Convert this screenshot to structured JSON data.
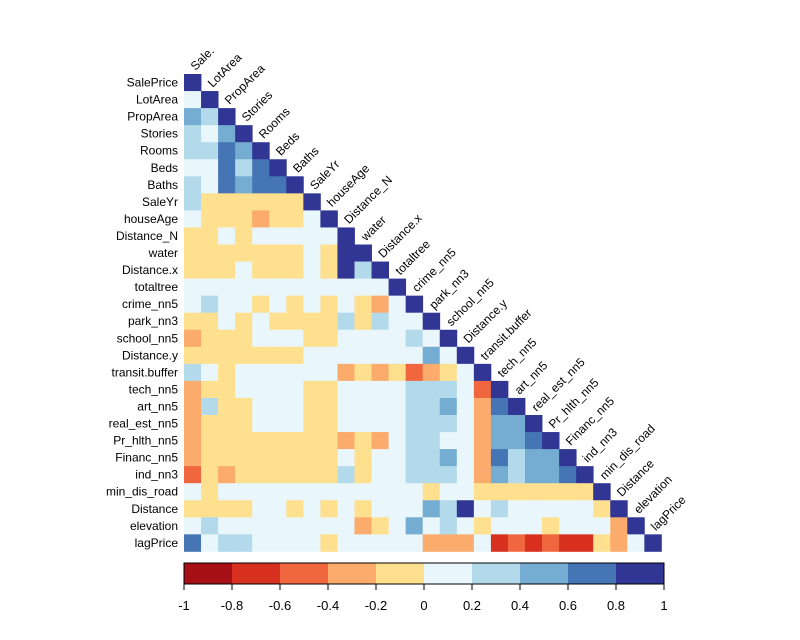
{
  "chart_data": {
    "type": "heatmap",
    "title": "",
    "variables": [
      "SalePrice",
      "LotArea",
      "PropArea",
      "Stories",
      "Rooms",
      "Beds",
      "Baths",
      "SaleYr",
      "houseAge",
      "Distance_N",
      "water",
      "Distance.x",
      "totaltree",
      "crime_nn5",
      "park_nn3",
      "school_nn5",
      "Distance.y",
      "transit.buffer",
      "tech_nn5",
      "art_nn5",
      "real_est_nn5",
      "Pr_hlth_nn5",
      "Financ_nn5",
      "ind_nn3",
      "min_dis_road",
      "Distance",
      "elevation",
      "lagPrice"
    ],
    "column_labels": [
      "Sale.",
      "LotArea",
      "PropArea",
      "Stories",
      "Rooms",
      "Beds",
      "Baths",
      "SaleYr",
      "houseAge",
      "Distance_N",
      "water",
      "Distance.x",
      "totaltree",
      "crime_nn5",
      "park_nn3",
      "school_nn5",
      "Distance.y",
      "transit.buffer",
      "tech_nn5",
      "art_nn5",
      "real_est_nn5",
      "Pr_hlth_nn5",
      "Financ_nn5",
      "ind_nn3",
      "min_dis_road",
      "Distance",
      "elevation",
      "lagPrice"
    ],
    "matrix_type": "lower-triangular correlation",
    "colorbar": {
      "range": [
        -1,
        1
      ],
      "ticks": [
        "-1",
        "-0.8",
        "-0.6",
        "-0.4",
        "-0.2",
        "0",
        "0.2",
        "0.4",
        "0.6",
        "0.8",
        "1"
      ],
      "colors": [
        "#a50f15",
        "#d7301f",
        "#f0663f",
        "#fbab6b",
        "#fee08f",
        "#e9f6fb",
        "#b3daea",
        "#74add1",
        "#4575b4",
        "#313695"
      ]
    },
    "correlations": [
      [
        1.0
      ],
      [
        0.1,
        1.0
      ],
      [
        0.5,
        0.3,
        1.0
      ],
      [
        0.3,
        0.1,
        0.5,
        1.0
      ],
      [
        0.3,
        0.3,
        0.6,
        0.4,
        1.0
      ],
      [
        0.1,
        0.1,
        0.6,
        0.3,
        0.7,
        1.0
      ],
      [
        0.3,
        0.1,
        0.7,
        0.5,
        0.7,
        0.7,
        1.0
      ],
      [
        0.3,
        -0.1,
        -0.1,
        -0.1,
        -0.1,
        -0.1,
        -0.1,
        1.0
      ],
      [
        0.1,
        -0.1,
        -0.1,
        -0.1,
        -0.3,
        -0.1,
        -0.1,
        0.1,
        1.0
      ],
      [
        -0.1,
        -0.1,
        0.1,
        -0.1,
        0.1,
        0.1,
        0.1,
        0.1,
        0.1,
        1.0
      ],
      [
        -0.1,
        -0.1,
        -0.1,
        -0.1,
        -0.1,
        -0.1,
        -0.1,
        0.1,
        -0.1,
        0.9,
        1.0
      ],
      [
        -0.1,
        -0.1,
        -0.1,
        0.1,
        -0.1,
        -0.1,
        -0.1,
        0.1,
        -0.1,
        0.9,
        0.3,
        1.0
      ],
      [
        0.1,
        0.1,
        0.1,
        0.1,
        0.1,
        0.1,
        0.1,
        0.1,
        0.1,
        0.1,
        0.1,
        0.1,
        1.0
      ],
      [
        0.1,
        0.3,
        0.1,
        0.1,
        -0.1,
        0.1,
        -0.1,
        0.1,
        -0.1,
        0.1,
        -0.1,
        -0.3,
        0.1,
        1.0
      ],
      [
        -0.1,
        -0.1,
        0.1,
        -0.1,
        0.1,
        -0.1,
        -0.1,
        -0.1,
        -0.1,
        0.3,
        -0.1,
        0.3,
        0.1,
        0.1,
        1.0
      ],
      [
        -0.3,
        -0.1,
        -0.1,
        -0.1,
        0.1,
        0.1,
        0.1,
        -0.1,
        -0.1,
        0.1,
        0.1,
        0.1,
        0.1,
        0.3,
        0.1,
        1.0
      ],
      [
        -0.1,
        -0.1,
        -0.1,
        -0.1,
        -0.1,
        -0.1,
        -0.1,
        0.1,
        0.1,
        0.1,
        0.1,
        0.1,
        0.1,
        0.1,
        0.5,
        0.1,
        1.0
      ],
      [
        0.3,
        0.1,
        -0.1,
        0.1,
        0.1,
        0.1,
        0.1,
        0.1,
        0.1,
        -0.3,
        -0.1,
        -0.3,
        -0.1,
        -0.5,
        -0.3,
        -0.1,
        0.1,
        1.0
      ],
      [
        -0.3,
        -0.1,
        -0.1,
        0.1,
        0.1,
        0.1,
        0.1,
        -0.1,
        -0.1,
        0.1,
        0.1,
        0.1,
        0.1,
        0.3,
        0.3,
        0.3,
        0.1,
        -0.5,
        1.0
      ],
      [
        -0.3,
        0.3,
        -0.1,
        -0.1,
        0.1,
        0.1,
        0.1,
        -0.1,
        -0.1,
        0.1,
        0.1,
        0.1,
        0.1,
        0.3,
        0.3,
        0.5,
        0.1,
        -0.3,
        0.7,
        1.0
      ],
      [
        -0.3,
        -0.1,
        -0.1,
        -0.1,
        0.1,
        0.1,
        0.1,
        -0.1,
        -0.1,
        0.1,
        0.1,
        0.1,
        0.1,
        0.3,
        0.3,
        0.3,
        0.1,
        -0.3,
        0.5,
        0.5,
        1.0
      ],
      [
        -0.3,
        -0.1,
        -0.1,
        -0.1,
        -0.1,
        -0.1,
        -0.1,
        -0.1,
        -0.1,
        -0.3,
        -0.1,
        -0.3,
        0.1,
        0.3,
        0.3,
        0.1,
        0.1,
        -0.3,
        0.5,
        0.5,
        0.7,
        1.0
      ],
      [
        -0.3,
        -0.1,
        -0.1,
        -0.1,
        -0.1,
        -0.1,
        -0.1,
        -0.1,
        -0.1,
        0.1,
        -0.1,
        0.1,
        0.1,
        0.3,
        0.3,
        0.5,
        0.1,
        -0.3,
        0.7,
        0.3,
        0.5,
        0.5,
        1.0
      ],
      [
        -0.5,
        -0.1,
        -0.3,
        -0.1,
        -0.1,
        -0.1,
        -0.1,
        -0.1,
        -0.1,
        0.3,
        -0.1,
        0.1,
        0.1,
        0.3,
        0.3,
        0.3,
        0.1,
        -0.3,
        0.5,
        0.3,
        0.5,
        0.5,
        0.7,
        1.0
      ],
      [
        0.1,
        -0.1,
        0.1,
        0.1,
        0.1,
        0.1,
        0.1,
        0.1,
        0.1,
        0.1,
        0.1,
        0.1,
        0.1,
        0.1,
        -0.1,
        0.1,
        0.1,
        -0.1,
        -0.1,
        -0.1,
        -0.1,
        -0.1,
        -0.1,
        -0.1,
        1.0
      ],
      [
        -0.1,
        -0.1,
        -0.1,
        -0.1,
        0.1,
        0.1,
        -0.1,
        0.1,
        -0.1,
        0.1,
        -0.1,
        0.1,
        0.1,
        0.1,
        0.5,
        0.3,
        0.9,
        0.1,
        0.3,
        0.1,
        0.1,
        0.1,
        0.1,
        0.1,
        -0.1,
        1.0
      ],
      [
        0.1,
        0.3,
        0.1,
        0.1,
        0.1,
        0.1,
        0.1,
        0.1,
        0.1,
        0.1,
        -0.3,
        -0.1,
        0.1,
        0.5,
        0.1,
        0.3,
        0.1,
        -0.1,
        0.1,
        0.1,
        0.1,
        -0.1,
        0.1,
        0.1,
        0.1,
        -0.3,
        1.0
      ],
      [
        0.7,
        0.1,
        0.3,
        0.3,
        0.1,
        0.1,
        0.1,
        0.1,
        -0.1,
        0.1,
        0.1,
        0.1,
        0.1,
        0.1,
        -0.3,
        -0.3,
        -0.3,
        0.1,
        -0.7,
        -0.5,
        -0.7,
        -0.5,
        -0.7,
        -0.7,
        -0.1,
        -0.3,
        0.1,
        1.0
      ]
    ]
  }
}
